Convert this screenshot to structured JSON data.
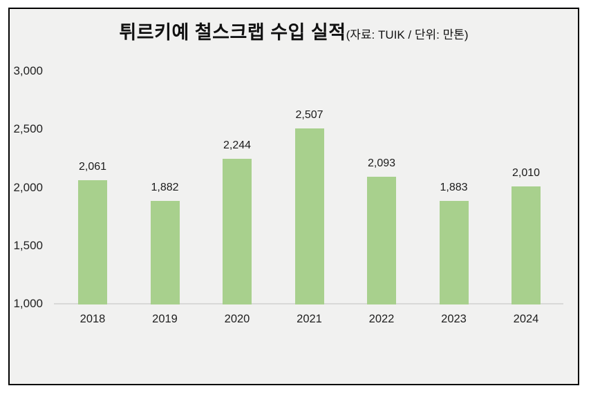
{
  "chart_data": {
    "type": "bar",
    "title": "튀르키예 철스크랩 수입 실적",
    "subtitle": "(자료: TUIK / 단위: 만톤)",
    "categories": [
      "2018",
      "2019",
      "2020",
      "2021",
      "2022",
      "2023",
      "2024"
    ],
    "values": [
      2061,
      1882,
      2244,
      2507,
      2093,
      1883,
      2010
    ],
    "value_labels": [
      "2,061",
      "1,882",
      "2,244",
      "2,507",
      "2,093",
      "1,883",
      "2,010"
    ],
    "xlabel": "",
    "ylabel": "",
    "ylim": [
      1000,
      3000
    ],
    "y_ticks": [
      {
        "value": 1000,
        "label": "1,000"
      },
      {
        "value": 1500,
        "label": "1,500"
      },
      {
        "value": 2000,
        "label": "2,000"
      },
      {
        "value": 2500,
        "label": "2,500"
      },
      {
        "value": 3000,
        "label": "3,000"
      }
    ],
    "grid": false,
    "legend_position": "none",
    "colors": {
      "bar": "#A8D08D",
      "plot_background": "#F1F1F0",
      "frame_border": "#000000",
      "baseline": "#D8D8D8",
      "text": "#1A1A1A"
    }
  }
}
